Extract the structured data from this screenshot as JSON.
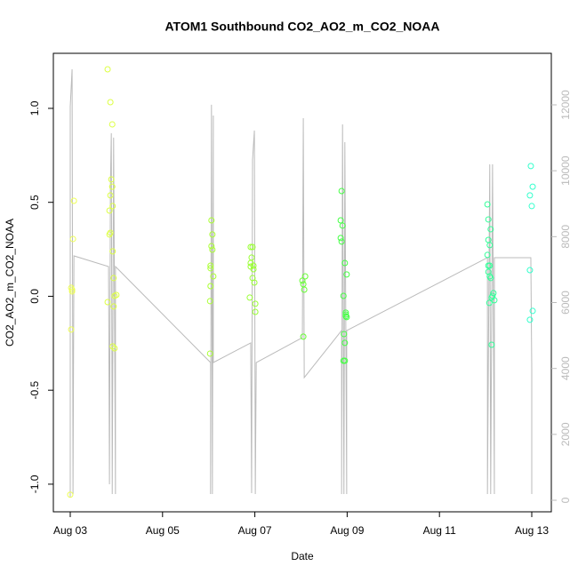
{
  "chart_data": {
    "type": "scatter",
    "title": "ATOM1 Southbound CO2_AO2_m_CO2_NOAA",
    "xlabel": "Date",
    "ylabel": "CO2_AO2_m_CO2_NOAA",
    "xlim": [
      2.634,
      13.424
    ],
    "ylim": [
      -1.147,
      1.293
    ],
    "y2lim": [
      -350,
      13564
    ],
    "xticks": [
      {
        "value": 3,
        "label": "Aug 03"
      },
      {
        "value": 5,
        "label": "Aug 05"
      },
      {
        "value": 7,
        "label": "Aug 07"
      },
      {
        "value": 9,
        "label": "Aug 09"
      },
      {
        "value": 11,
        "label": "Aug 11"
      },
      {
        "value": 13,
        "label": "Aug 13"
      }
    ],
    "yticks": [
      {
        "value": -1,
        "label": "-1.0"
      },
      -0.5,
      {
        "value": 0,
        "label": "0.0"
      },
      0.5,
      {
        "value": 1,
        "label": "1.0"
      }
    ],
    "y2ticks": [
      0,
      2000,
      4000,
      6000,
      8000,
      10000,
      12000
    ],
    "y2color": "#bbbbbb",
    "series": [
      {
        "type": "scatter",
        "color": "#eeff55",
        "x": [
          3.0,
          3.02,
          3.04,
          3.02,
          3.08,
          3.06,
          3.04
        ],
        "values": [
          -1.056,
          0.045,
          0.035,
          -0.177,
          0.508,
          0.305,
          0.026
        ]
      },
      {
        "type": "scatter",
        "color": "#ddff44",
        "x": [
          3.81,
          3.87,
          3.91,
          3.89,
          3.91,
          3.87,
          3.85,
          3.92,
          3.85,
          3.87,
          3.92,
          3.81,
          3.94,
          3.96,
          4.0,
          3.94,
          3.92,
          3.96
        ],
        "values": [
          1.208,
          1.033,
          0.915,
          0.622,
          0.583,
          0.537,
          0.456,
          0.48,
          0.329,
          0.338,
          0.239,
          -0.031,
          0.097,
          0.002,
          0.007,
          -0.054,
          -0.267,
          -0.277
        ]
      },
      {
        "type": "scatter",
        "color": "#aaff33",
        "x": [
          6.03,
          6.03,
          6.04,
          6.04,
          6.04,
          6.06,
          6.06,
          6.08,
          6.08,
          6.1
        ],
        "values": [
          -0.305,
          -0.026,
          0.054,
          0.149,
          0.163,
          0.404,
          0.267,
          0.248,
          0.329,
          0.106
        ]
      },
      {
        "type": "scatter",
        "color": "#99ff33",
        "x": [
          6.89,
          6.91,
          6.95,
          6.93,
          6.91,
          6.97,
          6.95,
          6.99,
          6.97,
          7.01,
          7.01,
          6.91
        ],
        "values": [
          -0.007,
          0.262,
          0.262,
          0.206,
          0.158,
          0.163,
          0.097,
          0.073,
          0.144,
          -0.04,
          -0.083,
          0.177
        ]
      },
      {
        "type": "scatter",
        "color": "#66ff33",
        "x": [
          8.03,
          8.05,
          8.07,
          8.09,
          8.05
        ],
        "values": [
          0.083,
          0.064,
          0.035,
          0.106,
          -0.215
        ]
      },
      {
        "type": "scatter",
        "color": "#44ff44",
        "x": [
          8.86,
          8.88,
          8.9,
          8.86,
          8.88,
          8.92,
          8.95,
          8.97,
          8.97,
          8.99,
          8.93,
          8.95,
          8.92,
          8.95,
          8.99,
          8.97
        ],
        "values": [
          0.404,
          0.56,
          0.376,
          0.31,
          0.291,
          0.002,
          0.177,
          -0.087,
          -0.106,
          -0.111,
          -0.201,
          -0.248,
          -0.343,
          -0.343,
          0.116,
          -0.097
        ]
      },
      {
        "type": "scatter",
        "color": "#33ff99",
        "x": [
          12.04,
          12.06,
          12.11,
          12.04,
          12.06,
          12.09,
          12.06,
          12.09,
          12.06,
          12.09,
          12.11,
          12.17,
          12.15,
          12.13,
          12.19,
          12.08,
          12.13
        ],
        "values": [
          0.489,
          0.409,
          0.357,
          0.22,
          0.3,
          0.272,
          0.163,
          0.163,
          0.13,
          0.106,
          0.097,
          0.017,
          0.002,
          -0.007,
          -0.021,
          -0.035,
          -0.258
        ]
      },
      {
        "type": "scatter",
        "color": "#33ffcc",
        "x": [
          12.98,
          13.02,
          12.96,
          13.0,
          12.96,
          13.02,
          12.96
        ],
        "values": [
          0.693,
          0.583,
          0.537,
          0.48,
          0.139,
          -0.078,
          -0.125
        ]
      },
      {
        "type": "line",
        "axis": "y2",
        "color": "#bbbbbb",
        "x": [
          3.0,
          3.0,
          3.04,
          3.06,
          3.08,
          3.83,
          3.85,
          3.87,
          3.89,
          3.91,
          3.94,
          3.98,
          3.98,
          6.04,
          6.04,
          6.06,
          6.08,
          6.1,
          6.1,
          6.91,
          6.93,
          6.95,
          6.99,
          7.01,
          7.03,
          8.03,
          8.05,
          8.07,
          8.88,
          8.88,
          8.9,
          8.93,
          8.95,
          8.99,
          8.99,
          12.04,
          12.04,
          12.09,
          12.11,
          12.15,
          12.19,
          12.19,
          12.98,
          13.0,
          13.0
        ],
        "values": [
          81,
          11948,
          13080,
          189,
          7417,
          7093,
          485,
          9520,
          11139,
          189,
          11004,
          189,
          7093,
          4180,
          189,
          12002,
          189,
          11678,
          4180,
          4774,
          216,
          10330,
          11220,
          189,
          4180,
          4936,
          11597,
          3722,
          5151,
          189,
          11408,
          189,
          10869,
          189,
          5151,
          7363,
          189,
          10195,
          189,
          10195,
          189,
          7363,
          7363,
          3992,
          189
        ]
      }
    ]
  }
}
